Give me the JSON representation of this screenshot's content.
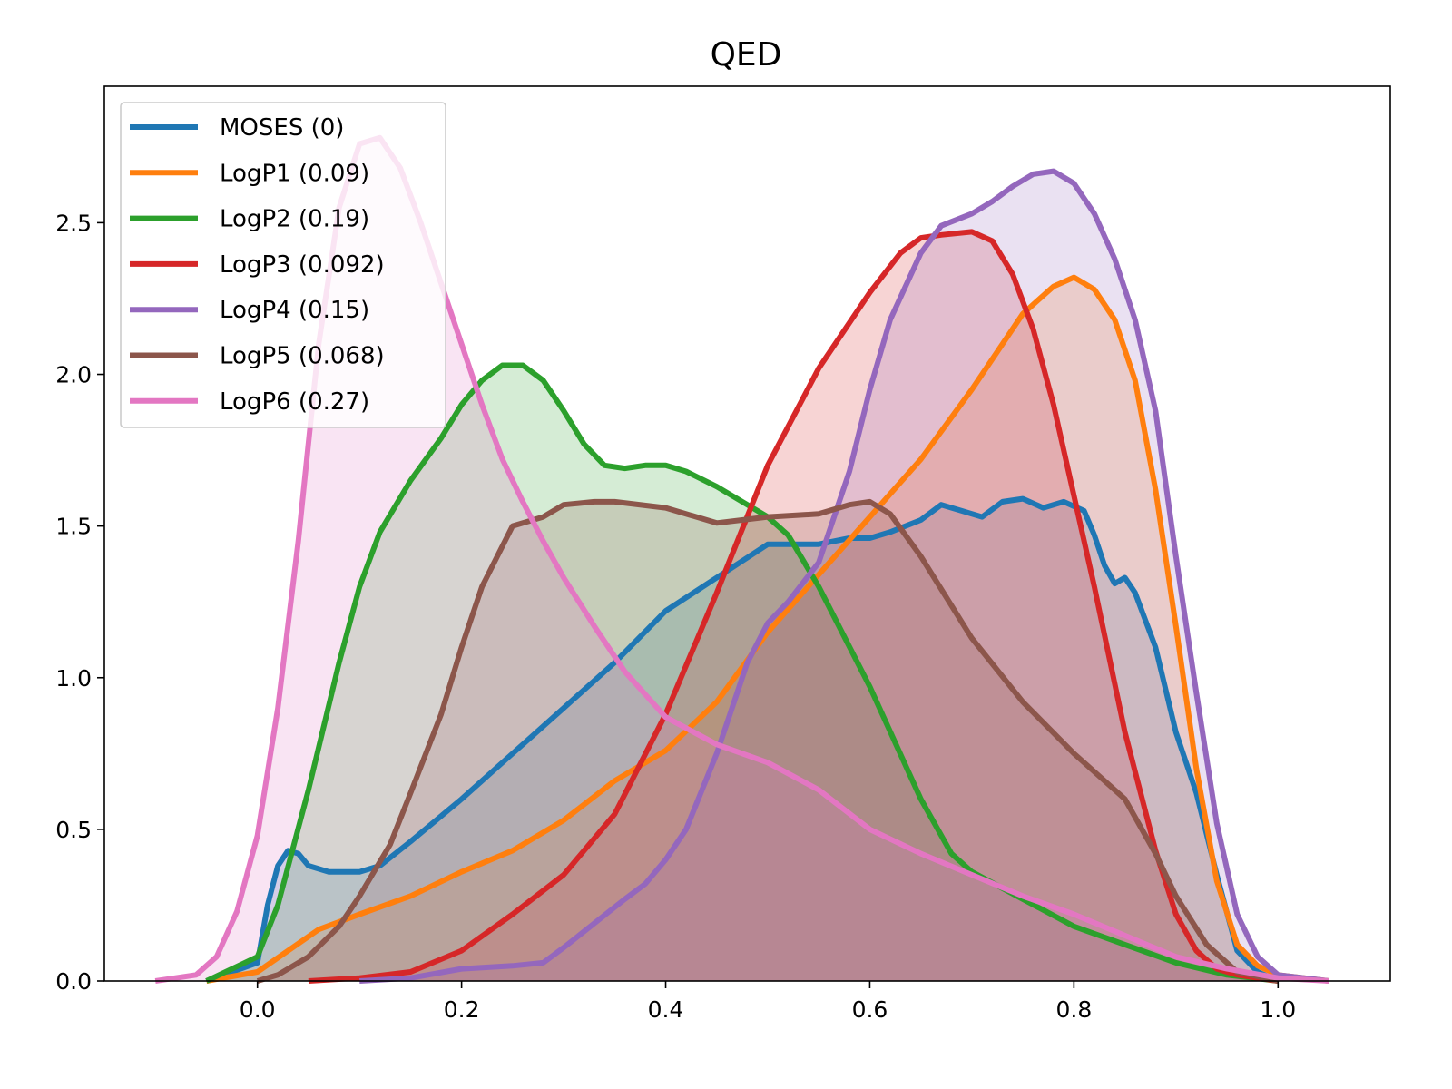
{
  "chart_data": {
    "type": "area",
    "title": "QED",
    "xlabel": "",
    "ylabel": "",
    "xlim": [
      -0.15,
      1.11
    ],
    "ylim": [
      0,
      2.95
    ],
    "xticks": [
      0.0,
      0.2,
      0.4,
      0.6,
      0.8,
      1.0
    ],
    "xtick_labels": [
      "0.0",
      "0.2",
      "0.4",
      "0.6",
      "0.8",
      "1.0"
    ],
    "yticks": [
      0.0,
      0.5,
      1.0,
      1.5,
      2.0,
      2.5
    ],
    "ytick_labels": [
      "0.0",
      "0.5",
      "1.0",
      "1.5",
      "2.0",
      "2.5"
    ],
    "grid": false,
    "legend_position": "top-left",
    "fill_alpha": 0.2,
    "series": [
      {
        "name": "MOSES (0)",
        "color": "#1f77b4",
        "points": [
          [
            -0.05,
            0.0
          ],
          [
            0.0,
            0.06
          ],
          [
            0.01,
            0.25
          ],
          [
            0.02,
            0.38
          ],
          [
            0.03,
            0.43
          ],
          [
            0.04,
            0.42
          ],
          [
            0.05,
            0.38
          ],
          [
            0.07,
            0.36
          ],
          [
            0.1,
            0.36
          ],
          [
            0.12,
            0.38
          ],
          [
            0.15,
            0.46
          ],
          [
            0.2,
            0.6
          ],
          [
            0.25,
            0.75
          ],
          [
            0.3,
            0.9
          ],
          [
            0.35,
            1.05
          ],
          [
            0.4,
            1.22
          ],
          [
            0.45,
            1.33
          ],
          [
            0.5,
            1.44
          ],
          [
            0.55,
            1.44
          ],
          [
            0.58,
            1.46
          ],
          [
            0.6,
            1.46
          ],
          [
            0.62,
            1.48
          ],
          [
            0.65,
            1.52
          ],
          [
            0.67,
            1.57
          ],
          [
            0.69,
            1.55
          ],
          [
            0.71,
            1.53
          ],
          [
            0.73,
            1.58
          ],
          [
            0.75,
            1.59
          ],
          [
            0.77,
            1.56
          ],
          [
            0.79,
            1.58
          ],
          [
            0.81,
            1.55
          ],
          [
            0.82,
            1.47
          ],
          [
            0.83,
            1.37
          ],
          [
            0.84,
            1.31
          ],
          [
            0.85,
            1.33
          ],
          [
            0.86,
            1.28
          ],
          [
            0.88,
            1.1
          ],
          [
            0.9,
            0.82
          ],
          [
            0.92,
            0.62
          ],
          [
            0.94,
            0.35
          ],
          [
            0.96,
            0.1
          ],
          [
            0.98,
            0.03
          ],
          [
            1.0,
            0.0
          ]
        ]
      },
      {
        "name": "LogP1 (0.09)",
        "color": "#ff7f0e",
        "points": [
          [
            -0.05,
            0.0
          ],
          [
            0.0,
            0.03
          ],
          [
            0.03,
            0.1
          ],
          [
            0.06,
            0.17
          ],
          [
            0.1,
            0.22
          ],
          [
            0.15,
            0.28
          ],
          [
            0.2,
            0.36
          ],
          [
            0.25,
            0.43
          ],
          [
            0.3,
            0.53
          ],
          [
            0.35,
            0.66
          ],
          [
            0.4,
            0.76
          ],
          [
            0.45,
            0.92
          ],
          [
            0.5,
            1.15
          ],
          [
            0.55,
            1.34
          ],
          [
            0.6,
            1.53
          ],
          [
            0.65,
            1.72
          ],
          [
            0.7,
            1.95
          ],
          [
            0.75,
            2.2
          ],
          [
            0.78,
            2.29
          ],
          [
            0.8,
            2.32
          ],
          [
            0.82,
            2.28
          ],
          [
            0.84,
            2.18
          ],
          [
            0.86,
            1.98
          ],
          [
            0.88,
            1.62
          ],
          [
            0.9,
            1.17
          ],
          [
            0.92,
            0.7
          ],
          [
            0.94,
            0.33
          ],
          [
            0.96,
            0.12
          ],
          [
            0.98,
            0.05
          ],
          [
            1.0,
            0.02
          ],
          [
            1.05,
            0.0
          ]
        ]
      },
      {
        "name": "LogP2 (0.19)",
        "color": "#2ca02c",
        "points": [
          [
            -0.05,
            0.0
          ],
          [
            0.0,
            0.08
          ],
          [
            0.02,
            0.25
          ],
          [
            0.05,
            0.63
          ],
          [
            0.08,
            1.05
          ],
          [
            0.1,
            1.3
          ],
          [
            0.12,
            1.48
          ],
          [
            0.15,
            1.65
          ],
          [
            0.18,
            1.79
          ],
          [
            0.2,
            1.9
          ],
          [
            0.22,
            1.98
          ],
          [
            0.24,
            2.03
          ],
          [
            0.26,
            2.03
          ],
          [
            0.28,
            1.98
          ],
          [
            0.3,
            1.88
          ],
          [
            0.32,
            1.77
          ],
          [
            0.34,
            1.7
          ],
          [
            0.36,
            1.69
          ],
          [
            0.38,
            1.7
          ],
          [
            0.4,
            1.7
          ],
          [
            0.42,
            1.68
          ],
          [
            0.45,
            1.63
          ],
          [
            0.5,
            1.53
          ],
          [
            0.52,
            1.47
          ],
          [
            0.55,
            1.3
          ],
          [
            0.6,
            0.97
          ],
          [
            0.65,
            0.6
          ],
          [
            0.68,
            0.42
          ],
          [
            0.7,
            0.36
          ],
          [
            0.75,
            0.27
          ],
          [
            0.8,
            0.18
          ],
          [
            0.85,
            0.12
          ],
          [
            0.9,
            0.06
          ],
          [
            0.95,
            0.02
          ],
          [
            1.0,
            0.0
          ]
        ]
      },
      {
        "name": "LogP3 (0.092)",
        "color": "#d62728",
        "points": [
          [
            0.05,
            0.0
          ],
          [
            0.1,
            0.01
          ],
          [
            0.15,
            0.03
          ],
          [
            0.2,
            0.1
          ],
          [
            0.25,
            0.22
          ],
          [
            0.3,
            0.35
          ],
          [
            0.35,
            0.55
          ],
          [
            0.4,
            0.88
          ],
          [
            0.45,
            1.28
          ],
          [
            0.5,
            1.7
          ],
          [
            0.55,
            2.02
          ],
          [
            0.6,
            2.27
          ],
          [
            0.63,
            2.4
          ],
          [
            0.65,
            2.45
          ],
          [
            0.67,
            2.46
          ],
          [
            0.7,
            2.47
          ],
          [
            0.72,
            2.44
          ],
          [
            0.74,
            2.33
          ],
          [
            0.76,
            2.15
          ],
          [
            0.78,
            1.9
          ],
          [
            0.8,
            1.6
          ],
          [
            0.82,
            1.3
          ],
          [
            0.85,
            0.82
          ],
          [
            0.88,
            0.43
          ],
          [
            0.9,
            0.22
          ],
          [
            0.92,
            0.1
          ],
          [
            0.94,
            0.04
          ],
          [
            0.96,
            0.02
          ],
          [
            1.0,
            0.0
          ]
        ]
      },
      {
        "name": "LogP4 (0.15)",
        "color": "#9467bd",
        "points": [
          [
            0.1,
            0.0
          ],
          [
            0.15,
            0.01
          ],
          [
            0.2,
            0.04
          ],
          [
            0.25,
            0.05
          ],
          [
            0.28,
            0.06
          ],
          [
            0.3,
            0.11
          ],
          [
            0.33,
            0.19
          ],
          [
            0.36,
            0.27
          ],
          [
            0.38,
            0.32
          ],
          [
            0.4,
            0.4
          ],
          [
            0.42,
            0.5
          ],
          [
            0.45,
            0.75
          ],
          [
            0.48,
            1.05
          ],
          [
            0.5,
            1.18
          ],
          [
            0.52,
            1.25
          ],
          [
            0.55,
            1.38
          ],
          [
            0.58,
            1.68
          ],
          [
            0.6,
            1.95
          ],
          [
            0.62,
            2.18
          ],
          [
            0.65,
            2.4
          ],
          [
            0.67,
            2.49
          ],
          [
            0.7,
            2.53
          ],
          [
            0.72,
            2.57
          ],
          [
            0.74,
            2.62
          ],
          [
            0.76,
            2.66
          ],
          [
            0.78,
            2.67
          ],
          [
            0.8,
            2.63
          ],
          [
            0.82,
            2.53
          ],
          [
            0.84,
            2.38
          ],
          [
            0.86,
            2.18
          ],
          [
            0.88,
            1.88
          ],
          [
            0.9,
            1.4
          ],
          [
            0.92,
            0.95
          ],
          [
            0.94,
            0.52
          ],
          [
            0.96,
            0.22
          ],
          [
            0.98,
            0.08
          ],
          [
            1.0,
            0.02
          ],
          [
            1.05,
            0.0
          ]
        ]
      },
      {
        "name": "LogP5 (0.068)",
        "color": "#8c564b",
        "points": [
          [
            0.0,
            0.0
          ],
          [
            0.02,
            0.02
          ],
          [
            0.05,
            0.08
          ],
          [
            0.08,
            0.18
          ],
          [
            0.1,
            0.28
          ],
          [
            0.13,
            0.45
          ],
          [
            0.15,
            0.62
          ],
          [
            0.18,
            0.88
          ],
          [
            0.2,
            1.1
          ],
          [
            0.22,
            1.3
          ],
          [
            0.25,
            1.5
          ],
          [
            0.28,
            1.53
          ],
          [
            0.3,
            1.57
          ],
          [
            0.33,
            1.58
          ],
          [
            0.35,
            1.58
          ],
          [
            0.4,
            1.56
          ],
          [
            0.45,
            1.51
          ],
          [
            0.5,
            1.53
          ],
          [
            0.55,
            1.54
          ],
          [
            0.58,
            1.57
          ],
          [
            0.6,
            1.58
          ],
          [
            0.62,
            1.54
          ],
          [
            0.65,
            1.4
          ],
          [
            0.7,
            1.13
          ],
          [
            0.75,
            0.92
          ],
          [
            0.8,
            0.75
          ],
          [
            0.85,
            0.6
          ],
          [
            0.88,
            0.42
          ],
          [
            0.9,
            0.28
          ],
          [
            0.93,
            0.12
          ],
          [
            0.96,
            0.03
          ],
          [
            1.0,
            0.0
          ]
        ]
      },
      {
        "name": "LogP6 (0.27)",
        "color": "#e377c2",
        "points": [
          [
            -0.1,
            0.0
          ],
          [
            -0.06,
            0.02
          ],
          [
            -0.04,
            0.08
          ],
          [
            -0.02,
            0.23
          ],
          [
            0.0,
            0.48
          ],
          [
            0.02,
            0.9
          ],
          [
            0.04,
            1.45
          ],
          [
            0.06,
            2.1
          ],
          [
            0.08,
            2.55
          ],
          [
            0.1,
            2.76
          ],
          [
            0.12,
            2.78
          ],
          [
            0.14,
            2.68
          ],
          [
            0.16,
            2.5
          ],
          [
            0.18,
            2.3
          ],
          [
            0.2,
            2.1
          ],
          [
            0.22,
            1.9
          ],
          [
            0.24,
            1.72
          ],
          [
            0.26,
            1.58
          ],
          [
            0.28,
            1.45
          ],
          [
            0.3,
            1.33
          ],
          [
            0.33,
            1.17
          ],
          [
            0.36,
            1.02
          ],
          [
            0.4,
            0.87
          ],
          [
            0.45,
            0.78
          ],
          [
            0.5,
            0.72
          ],
          [
            0.55,
            0.63
          ],
          [
            0.6,
            0.5
          ],
          [
            0.65,
            0.42
          ],
          [
            0.7,
            0.35
          ],
          [
            0.75,
            0.28
          ],
          [
            0.8,
            0.22
          ],
          [
            0.85,
            0.15
          ],
          [
            0.9,
            0.08
          ],
          [
            0.95,
            0.04
          ],
          [
            1.0,
            0.01
          ],
          [
            1.05,
            0.0
          ]
        ]
      }
    ]
  }
}
